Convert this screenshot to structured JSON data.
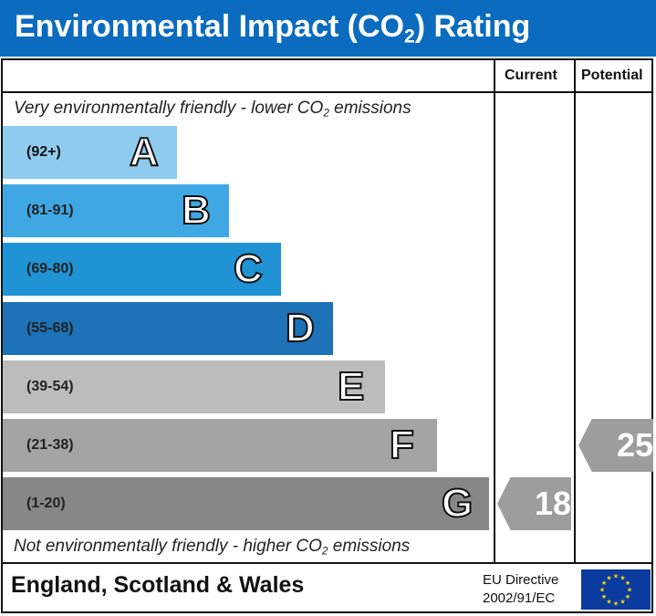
{
  "header": {
    "title_main": "Environmental Impact (CO",
    "title_sub": "2",
    "title_end": ") Rating"
  },
  "columns": {
    "current": "Current",
    "potential": "Potential"
  },
  "scale": {
    "top_main": "Very environmentally friendly - lower CO",
    "top_sub": "2",
    "top_end": " emissions",
    "bottom_main": "Not environmentally friendly - higher CO",
    "bottom_sub": "2",
    "bottom_end": " emissions"
  },
  "chart_data": {
    "type": "bar",
    "categories": [
      "A",
      "B",
      "C",
      "D",
      "E",
      "F",
      "G"
    ],
    "ranges": [
      "(92+)",
      "(81-91)",
      "(69-80)",
      "(55-68)",
      "(39-54)",
      "(21-38)",
      "(1-20)"
    ],
    "bands": [
      {
        "letter": "A",
        "range": "(92+)",
        "min": 92,
        "max": 100,
        "color": "#8ecbef"
      },
      {
        "letter": "B",
        "range": "(81-91)",
        "min": 81,
        "max": 91,
        "color": "#3fa8e4"
      },
      {
        "letter": "C",
        "range": "(69-80)",
        "min": 69,
        "max": 80,
        "color": "#1f93d4"
      },
      {
        "letter": "D",
        "range": "(55-68)",
        "min": 55,
        "max": 68,
        "color": "#1d72b8"
      },
      {
        "letter": "E",
        "range": "(39-54)",
        "min": 39,
        "max": 54,
        "color": "#bcbcbc"
      },
      {
        "letter": "F",
        "range": "(21-38)",
        "min": 21,
        "max": 38,
        "color": "#a4a4a4"
      },
      {
        "letter": "G",
        "range": "(1-20)",
        "min": 1,
        "max": 20,
        "color": "#878787"
      }
    ],
    "current": {
      "value": 18,
      "label": "18",
      "band": "G",
      "color": "#9d9d9d"
    },
    "potential": {
      "value": 25,
      "label": "25",
      "band": "F",
      "color": "#9d9d9d"
    }
  },
  "footer": {
    "region": "England, Scotland & Wales",
    "directive_line1": "EU Directive",
    "directive_line2": "2002/91/EC",
    "flag_color": "#0b3b9f",
    "star_color": "#ffdd00"
  }
}
